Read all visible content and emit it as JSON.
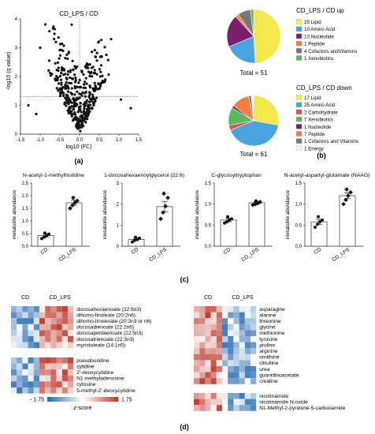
{
  "panel_labels": {
    "a": "(a)",
    "b": "(b)",
    "c": "(c)",
    "d": "(d)"
  },
  "chart_data": [
    {
      "type": "scatter",
      "title": "CD_LPS / CD",
      "xlabel": "log10 (FC)",
      "ylabel": "-log10 (q value)",
      "xlim": [
        -1.5,
        1.5
      ],
      "ylim": [
        0,
        4
      ],
      "xticks": [
        "-1.5",
        "-1.0",
        "-0.5",
        "0.0",
        "0.5",
        "1.0",
        "1.5"
      ],
      "yticks": [
        "0",
        "1",
        "2",
        "3",
        "4"
      ],
      "threshold_y": 1.3,
      "threshold_x": 0.0,
      "points_seed": 7,
      "points_count": 380
    },
    {
      "type": "pie",
      "title": "CD_LPS / CD up",
      "total_label": "Total = 51",
      "slices": [
        {
          "label": "25 Lipid",
          "value": 25,
          "color": "#f4e84a"
        },
        {
          "label": "10 Amino Acid",
          "value": 10,
          "color": "#4aa3df"
        },
        {
          "label": "10 Nucleotide",
          "value": 10,
          "color": "#7a1e6e"
        },
        {
          "label": "1 Peptide",
          "value": 1,
          "color": "#f07f3c"
        },
        {
          "label": "4 Cofactors andVitamins",
          "value": 4,
          "color": "#777777"
        },
        {
          "label": "1 Xenobiotics",
          "value": 1,
          "color": "#5cb85c"
        }
      ]
    },
    {
      "type": "pie",
      "title": "CD_LPS / CD down",
      "total_label": "Total = 61",
      "slices": [
        {
          "label": "17 Lipid",
          "value": 17,
          "color": "#f4e84a"
        },
        {
          "label": "25 Amino Acid",
          "value": 25,
          "color": "#4aa3df"
        },
        {
          "label": "2 Carbohydrate",
          "value": 2,
          "color": "#d9534f"
        },
        {
          "label": "7 Xenobiotics",
          "value": 7,
          "color": "#5cb85c"
        },
        {
          "label": "1 Nucleotide",
          "value": 1,
          "color": "#7a1e6e"
        },
        {
          "label": "7 Peptide",
          "value": 7,
          "color": "#f07f3c"
        },
        {
          "label": "1 Cofactors and Vitamins",
          "value": 1,
          "color": "#777777"
        },
        {
          "label": "1 Energy",
          "value": 1,
          "color": "#f2f2f2"
        }
      ]
    },
    {
      "type": "bar",
      "title": "N-acetyl-1-methylhistidine",
      "ylabel": "metabolite abundance",
      "categories": [
        "CD",
        "CD_LPS"
      ],
      "values": [
        0.42,
        1.72
      ],
      "errors": [
        0.06,
        0.1
      ],
      "ylim": [
        0,
        2.5
      ],
      "yticks": [
        "0.0",
        "0.5",
        "1.0",
        "1.5",
        "2.0",
        "2.5"
      ],
      "points": [
        [
          0.3,
          0.36,
          0.42,
          0.48,
          0.52
        ],
        [
          1.5,
          1.62,
          1.72,
          1.8,
          1.92
        ]
      ]
    },
    {
      "type": "bar",
      "title": "1-docosahexaenoylglycerol (22:6)",
      "ylabel": "metabolite abundance",
      "categories": [
        "CD",
        "CD_LPS"
      ],
      "values": [
        0.32,
        1.88
      ],
      "errors": [
        0.06,
        0.25
      ],
      "ylim": [
        0,
        3
      ],
      "yticks": [
        "0",
        "1",
        "2",
        "3"
      ],
      "points": [
        [
          0.2,
          0.28,
          0.32,
          0.38,
          0.42
        ],
        [
          1.3,
          1.6,
          1.9,
          2.3,
          2.5
        ]
      ]
    },
    {
      "type": "bar",
      "title": "C-glycosyltryptophan",
      "ylabel": "metabolite abundance",
      "categories": [
        "CD",
        "CD_LPS"
      ],
      "values": [
        0.62,
        1.03
      ],
      "errors": [
        0.04,
        0.02
      ],
      "ylim": [
        0,
        1.5
      ],
      "yticks": [
        "0.0",
        "0.5",
        "1.0",
        "1.5"
      ],
      "points": [
        [
          0.55,
          0.58,
          0.62,
          0.65,
          0.7
        ],
        [
          0.98,
          1.0,
          1.02,
          1.05,
          1.07
        ]
      ]
    },
    {
      "type": "bar",
      "title": "N-acetyl-aspartyl-glutamate (NAAG)",
      "ylabel": "metabolite abundance",
      "categories": [
        "CD",
        "CD_LPS"
      ],
      "values": [
        0.58,
        1.2
      ],
      "errors": [
        0.06,
        0.07
      ],
      "ylim": [
        0,
        1.5
      ],
      "yticks": [
        "0.0",
        "0.5",
        "1.0",
        "1.5"
      ],
      "points": [
        [
          0.45,
          0.52,
          0.58,
          0.62,
          0.7
        ],
        [
          1.0,
          1.1,
          1.2,
          1.28,
          1.35
        ]
      ]
    },
    {
      "type": "heatmap",
      "group_labels": [
        "CD",
        "CD_LPS"
      ],
      "blocks": [
        {
          "rows": [
            "docosahexaenoate (22:6n3)",
            "dihomo-linoleate (20:2n6)",
            "dihomo-linolenate (20:3n3 or n6)",
            "docosadienoate (22:2n6)",
            "docosapentaenoate (22:5n3)",
            "docosatrienoate (22:3n3)",
            "myristoleate (14:1n5)"
          ],
          "direction": "up"
        },
        {
          "rows": [
            "pseudouridine",
            "cytidine",
            "2'-deoxycytidine",
            "N1-methyladenosine",
            "cytosine",
            "5-methyl-2'-deoxycytidine"
          ],
          "direction": "up"
        }
      ]
    },
    {
      "type": "heatmap",
      "group_labels": [
        "CD",
        "CD_LPS"
      ],
      "blocks": [
        {
          "rows": [
            "asparagine",
            "alanine",
            "threonine",
            "glycine",
            "methionine",
            "tyrosine",
            "proline",
            "arginine",
            "ornithine",
            "citrulline",
            "urea",
            "guanidinoacetate",
            "creatine"
          ],
          "direction": "down"
        },
        {
          "rows": [
            "nicotinamide",
            "nicotinamide N-oxide",
            "N1-Methyl-2-pyridone-5-carboxamide"
          ],
          "direction": "down"
        }
      ]
    }
  ],
  "colorbar": {
    "min_label": "- 1.75",
    "max_label": "1.75",
    "title": "z-score",
    "low": "#2b6cb0",
    "mid": "#ffffff",
    "high": "#c0392b"
  }
}
